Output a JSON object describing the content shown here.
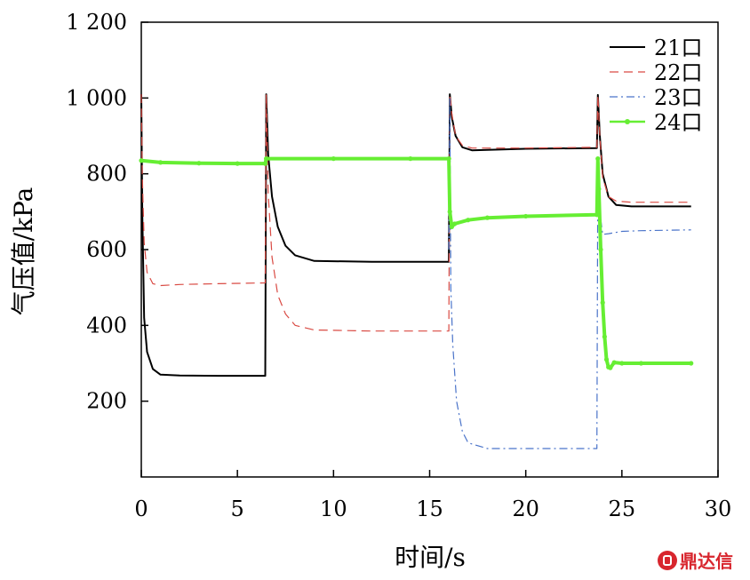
{
  "chart_data": {
    "type": "line",
    "title": "",
    "xlabel": "时间/s",
    "ylabel": "气压值/kPa",
    "xlim": [
      0,
      30
    ],
    "ylim": [
      0,
      1200
    ],
    "xticks": [
      0,
      5,
      10,
      15,
      20,
      25,
      30
    ],
    "xtick_labels": [
      "0",
      "5",
      "10",
      "15",
      "20",
      "25",
      "30"
    ],
    "yticks": [
      200,
      400,
      600,
      800,
      1000,
      1200
    ],
    "ytick_labels": [
      "200",
      "400",
      "600",
      "800",
      "1 000",
      "1 200"
    ],
    "grid": false,
    "legend_position": "top-right",
    "series": [
      {
        "name": "21口",
        "color": "#000000",
        "style": "solid",
        "points": [
          [
            0,
            1010
          ],
          [
            0.05,
            700
          ],
          [
            0.15,
            420
          ],
          [
            0.3,
            330
          ],
          [
            0.6,
            285
          ],
          [
            1,
            270
          ],
          [
            2,
            268
          ],
          [
            4,
            267
          ],
          [
            6.45,
            267
          ],
          [
            6.5,
            1010
          ],
          [
            6.6,
            850
          ],
          [
            6.8,
            740
          ],
          [
            7.1,
            660
          ],
          [
            7.5,
            610
          ],
          [
            8,
            585
          ],
          [
            9,
            570
          ],
          [
            12,
            568
          ],
          [
            16,
            568
          ],
          [
            16.05,
            1010
          ],
          [
            16.15,
            950
          ],
          [
            16.35,
            900
          ],
          [
            16.7,
            870
          ],
          [
            17.2,
            862
          ],
          [
            20,
            866
          ],
          [
            23.7,
            868
          ],
          [
            23.75,
            1008
          ],
          [
            23.85,
            900
          ],
          [
            24,
            800
          ],
          [
            24.3,
            740
          ],
          [
            24.7,
            718
          ],
          [
            25.5,
            714
          ],
          [
            28.6,
            714
          ]
        ]
      },
      {
        "name": "22口",
        "color": "#d94a43",
        "style": "dashed",
        "points": [
          [
            0,
            1010
          ],
          [
            0.05,
            800
          ],
          [
            0.15,
            620
          ],
          [
            0.3,
            540
          ],
          [
            0.6,
            510
          ],
          [
            1,
            505
          ],
          [
            2,
            508
          ],
          [
            4,
            510
          ],
          [
            6.45,
            512
          ],
          [
            6.5,
            1010
          ],
          [
            6.6,
            750
          ],
          [
            6.8,
            580
          ],
          [
            7.1,
            480
          ],
          [
            7.5,
            430
          ],
          [
            8,
            400
          ],
          [
            9,
            388
          ],
          [
            12,
            385
          ],
          [
            16,
            385
          ],
          [
            16.05,
            1010
          ],
          [
            16.15,
            960
          ],
          [
            16.35,
            900
          ],
          [
            16.7,
            875
          ],
          [
            17.2,
            868
          ],
          [
            20,
            868
          ],
          [
            23.7,
            870
          ],
          [
            23.75,
            1008
          ],
          [
            23.85,
            900
          ],
          [
            24,
            790
          ],
          [
            24.3,
            740
          ],
          [
            24.7,
            728
          ],
          [
            25.5,
            725
          ],
          [
            28.6,
            725
          ]
        ]
      },
      {
        "name": "23口",
        "color": "#4a73c9",
        "style": "dashdot",
        "points": [
          [
            16,
            600
          ],
          [
            16.05,
            1000
          ],
          [
            16.1,
            500
          ],
          [
            16.2,
            350
          ],
          [
            16.4,
            200
          ],
          [
            16.7,
            120
          ],
          [
            17,
            90
          ],
          [
            18,
            75
          ],
          [
            20,
            75
          ],
          [
            23.7,
            75
          ],
          [
            23.75,
            840
          ],
          [
            23.85,
            700
          ],
          [
            24,
            640
          ],
          [
            24.3,
            642
          ],
          [
            25,
            648
          ],
          [
            26,
            650
          ],
          [
            28.6,
            652
          ]
        ]
      },
      {
        "name": "24口",
        "color": "#66ee33",
        "style": "thick-solid-marker",
        "points": [
          [
            0,
            835
          ],
          [
            1,
            830
          ],
          [
            3,
            828
          ],
          [
            5,
            827
          ],
          [
            6.45,
            827
          ],
          [
            6.5,
            840
          ],
          [
            10,
            840
          ],
          [
            14,
            840
          ],
          [
            16,
            840
          ],
          [
            16.05,
            700
          ],
          [
            16.15,
            660
          ],
          [
            16.3,
            668
          ],
          [
            17,
            678
          ],
          [
            18,
            684
          ],
          [
            20,
            688
          ],
          [
            23.7,
            692
          ],
          [
            23.75,
            840
          ],
          [
            23.8,
            760
          ],
          [
            23.9,
            600
          ],
          [
            24,
            460
          ],
          [
            24.1,
            370
          ],
          [
            24.2,
            310
          ],
          [
            24.3,
            290
          ],
          [
            24.4,
            288
          ],
          [
            24.6,
            302
          ],
          [
            25,
            300
          ],
          [
            26,
            300
          ],
          [
            28.6,
            300
          ]
        ]
      }
    ]
  },
  "watermark": {
    "text": "鼎达信"
  }
}
